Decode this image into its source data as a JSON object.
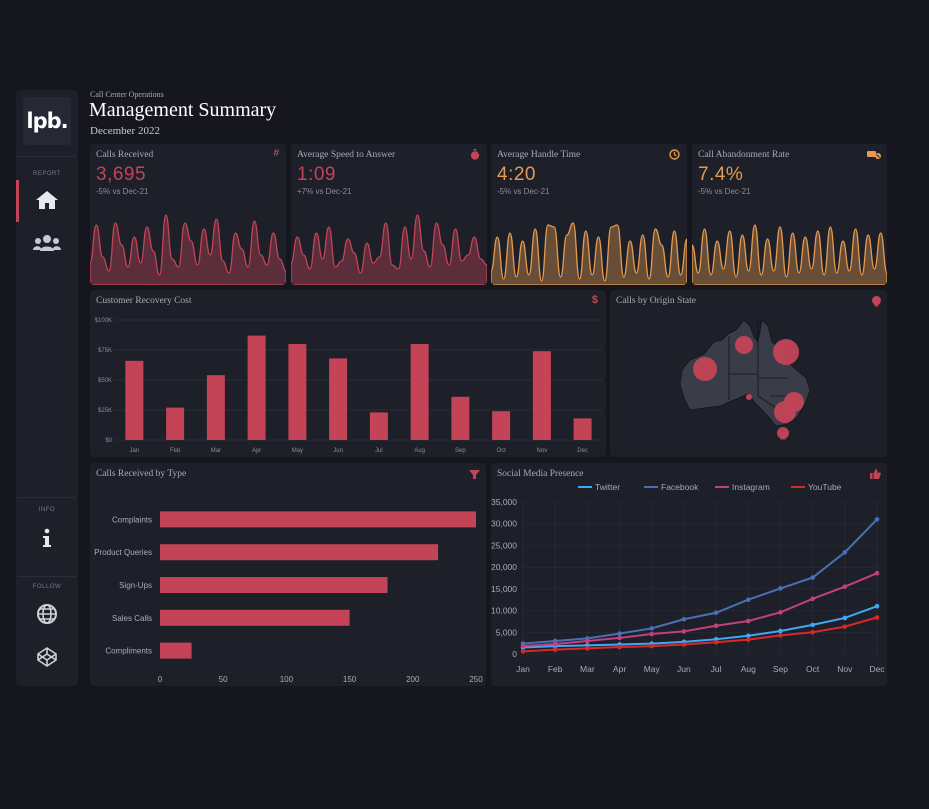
{
  "header": {
    "subtitle": "Call Center Operations",
    "title": "Management Summary",
    "period": "December 2022"
  },
  "sidebar": {
    "logo": "lpb.",
    "sections": [
      {
        "label": "REPORT"
      },
      {
        "label": "INFO"
      },
      {
        "label": "FOLLOW"
      }
    ],
    "items": [
      {
        "name": "home",
        "icon": "home-icon"
      },
      {
        "name": "users",
        "icon": "users-icon"
      },
      {
        "name": "info",
        "icon": "info-icon"
      },
      {
        "name": "web",
        "icon": "globe-icon"
      },
      {
        "name": "codepen",
        "icon": "codepen-icon"
      }
    ]
  },
  "kpis": [
    {
      "title": "Calls Received",
      "value": "3,695",
      "delta": "-5% vs Dec-21",
      "icon": "hash-icon",
      "color": "#c34457"
    },
    {
      "title": "Average Speed to Answer",
      "value": "1:09",
      "delta": "+7% vs Dec-21",
      "icon": "stopwatch-icon",
      "color": "#c34457"
    },
    {
      "title": "Average Handle Time",
      "value": "4:20",
      "delta": "-5% vs Dec-21",
      "icon": "clock-icon",
      "color": "#e59a4f"
    },
    {
      "title": "Call Abandonment Rate",
      "value": "7.4%",
      "delta": "-5% vs Dec-21",
      "icon": "phone-slash-icon",
      "color": "#e59a4f"
    }
  ],
  "recovery": {
    "title": "Customer Recovery Cost",
    "icon": "dollar-icon"
  },
  "map": {
    "title": "Calls by Origin State",
    "icon": "map-pin-icon"
  },
  "types": {
    "title": "Calls Received by Type",
    "icon": "filter-icon"
  },
  "social": {
    "title": "Social Media Presence",
    "icon": "thumbs-up-icon"
  },
  "colors": {
    "accent": "#c34457",
    "orange": "#e59a4f",
    "bg": "#16161e",
    "card": "#1d1f29"
  },
  "chart_data": [
    {
      "type": "bar",
      "title": "Customer Recovery Cost",
      "categories": [
        "Jan",
        "Feb",
        "Mar",
        "Apr",
        "May",
        "Jun",
        "Jul",
        "Aug",
        "Sep",
        "Oct",
        "Nov",
        "Dec"
      ],
      "values": [
        66,
        27,
        54,
        87,
        80,
        68,
        23,
        80,
        36,
        24,
        74,
        18
      ],
      "ylim": [
        0,
        100
      ],
      "yticks": [
        "$0",
        "$25K",
        "$50K",
        "$75K",
        "$100K"
      ],
      "ytick_values": [
        0,
        25,
        50,
        75,
        100
      ]
    },
    {
      "type": "bar",
      "orientation": "horizontal",
      "title": "Calls Received by Type",
      "categories": [
        "Complaints",
        "Product Queries",
        "Sign-Ups",
        "Sales Calls",
        "Compliments"
      ],
      "values": [
        250,
        220,
        180,
        150,
        25
      ],
      "xlim": [
        0,
        250
      ],
      "xticks": [
        "0",
        "50",
        "100",
        "150",
        "200",
        "250"
      ],
      "xtick_values": [
        0,
        50,
        100,
        150,
        200,
        250
      ]
    },
    {
      "type": "line",
      "title": "Social Media Presence",
      "x": [
        "Jan",
        "Feb",
        "Mar",
        "Apr",
        "May",
        "Jun",
        "Jul",
        "Aug",
        "Sep",
        "Oct",
        "Nov",
        "Dec"
      ],
      "ylim": [
        0,
        35000
      ],
      "yticks": [
        "0",
        "5,000",
        "10,000",
        "15,000",
        "20,000",
        "25,000",
        "30,000",
        "35,000"
      ],
      "ytick_values": [
        0,
        5000,
        10000,
        15000,
        20000,
        25000,
        30000,
        35000
      ],
      "series": [
        {
          "name": "Twitter",
          "color": "#3fa7f5",
          "values": [
            1500,
            1800,
            2000,
            2200,
            2400,
            2800,
            3400,
            4200,
            5300,
            6700,
            8300,
            11000
          ]
        },
        {
          "name": "Facebook",
          "color": "#4a6fb5",
          "values": [
            2400,
            3000,
            3600,
            4700,
            5900,
            8000,
            9500,
            12500,
            15100,
            17600,
            23400,
            31000
          ]
        },
        {
          "name": "Instagram",
          "color": "#c0417b",
          "values": [
            1800,
            2300,
            3000,
            3700,
            4600,
            5200,
            6500,
            7600,
            9600,
            12700,
            15500,
            18600
          ]
        },
        {
          "name": "YouTube",
          "color": "#d52a2a",
          "values": [
            600,
            1000,
            1300,
            1600,
            1800,
            2200,
            2700,
            3300,
            4300,
            5000,
            6300,
            8400
          ]
        }
      ]
    },
    {
      "type": "area",
      "title": "Calls Received trend",
      "values": [
        22,
        60,
        28,
        14,
        62,
        40,
        18,
        48,
        22,
        58,
        34,
        10,
        70,
        26,
        18,
        62,
        44,
        20,
        56,
        30,
        66,
        24,
        12,
        52,
        36,
        18,
        64,
        30,
        20,
        52,
        26,
        14
      ]
    },
    {
      "type": "area",
      "title": "Average Speed to Answer trend",
      "values": [
        22,
        48,
        30,
        16,
        52,
        26,
        58,
        18,
        24,
        46,
        32,
        12,
        42,
        22,
        28,
        62,
        20,
        16,
        58,
        26,
        70,
        34,
        18,
        62,
        40,
        20,
        56,
        24,
        30,
        48,
        26,
        20
      ]
    },
    {
      "type": "area",
      "title": "Average Handle Time trend",
      "values": [
        14,
        48,
        6,
        52,
        8,
        44,
        10,
        56,
        4,
        60,
        58,
        8,
        50,
        62,
        6,
        54,
        10,
        48,
        4,
        58,
        60,
        8,
        44,
        12,
        50,
        6,
        56,
        40,
        8,
        54,
        10,
        46
      ]
    },
    {
      "type": "area",
      "title": "Call Abandonment Rate trend",
      "values": [
        40,
        12,
        56,
        10,
        44,
        16,
        54,
        8,
        50,
        14,
        60,
        10,
        46,
        14,
        58,
        8,
        52,
        12,
        48,
        16,
        54,
        10,
        58,
        12,
        44,
        14,
        56,
        10,
        50,
        16,
        52,
        12
      ]
    }
  ]
}
